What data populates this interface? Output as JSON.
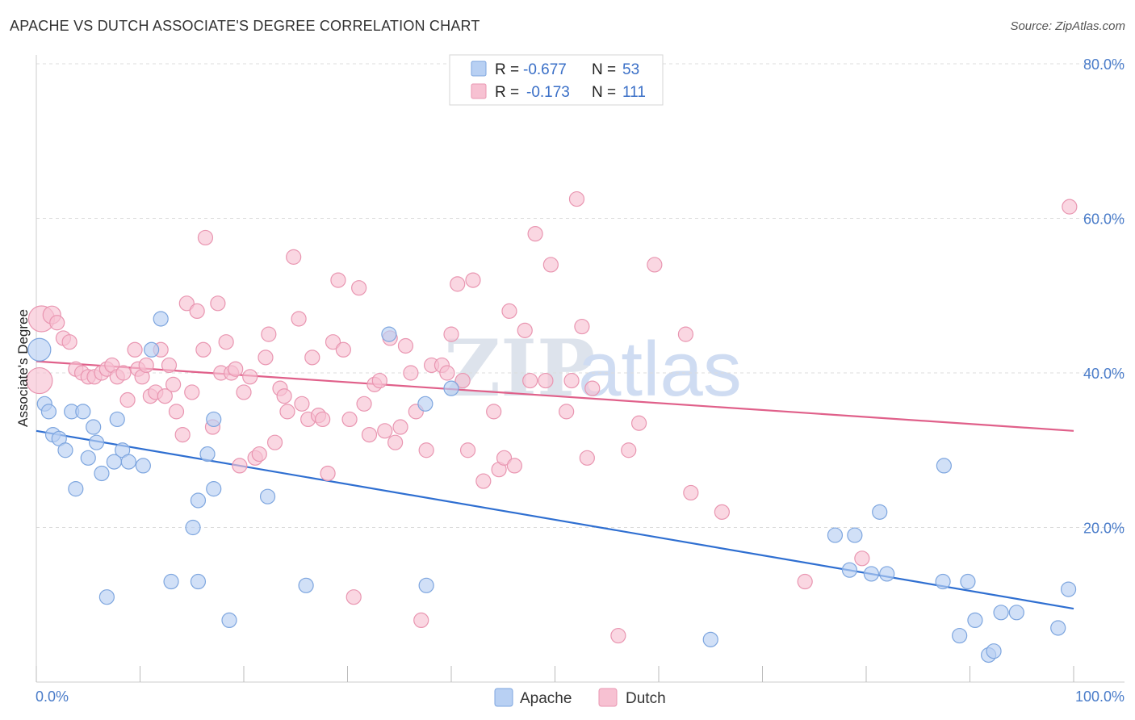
{
  "title": "APACHE VS DUTCH ASSOCIATE'S DEGREE CORRELATION CHART",
  "source": "Source: ZipAtlas.com",
  "watermark": {
    "zip": "ZIP",
    "atlas": "atlas"
  },
  "legend_top": [
    {
      "r_label": "R = ",
      "r_value": "-0.677",
      "n_label": "N = ",
      "n_value": "53"
    },
    {
      "r_label": "R = ",
      "r_value": "-0.173",
      "n_label": "N = ",
      "n_value": "111"
    }
  ],
  "colors": {
    "apache_fill": "#b8d0f3",
    "apache_stroke": "#7ea6df",
    "apache_line": "#2f6fd1",
    "dutch_fill": "#f7c1d2",
    "dutch_stroke": "#e996b1",
    "dutch_line": "#e0608a"
  },
  "chart_data": {
    "type": "scatter",
    "xlabel": "",
    "ylabel": "Associate's Degree",
    "xlim": [
      0,
      100
    ],
    "ylim": [
      0,
      80
    ],
    "x_tick_labels": [
      "0.0%",
      "100.0%"
    ],
    "y_ticks": [
      20,
      40,
      60,
      80
    ],
    "y_tick_labels": [
      "20.0%",
      "40.0%",
      "60.0%",
      "80.0%"
    ],
    "grid": true,
    "legend": "top-center",
    "series": [
      {
        "name": "Apache",
        "trend": {
          "x": [
            0,
            100
          ],
          "y": [
            32.5,
            9.5
          ]
        },
        "points": [
          [
            0.3,
            43,
            14
          ],
          [
            0.8,
            36,
            9
          ],
          [
            1.2,
            35,
            9
          ],
          [
            1.6,
            32,
            9
          ],
          [
            2.2,
            31.5,
            9
          ],
          [
            2.8,
            30,
            9
          ],
          [
            3.4,
            35,
            9
          ],
          [
            3.8,
            25,
            9
          ],
          [
            4.5,
            35,
            9
          ],
          [
            5.0,
            29,
            9
          ],
          [
            5.5,
            33,
            9
          ],
          [
            5.8,
            31,
            9
          ],
          [
            6.3,
            27,
            9
          ],
          [
            6.8,
            11,
            9
          ],
          [
            7.5,
            28.5,
            9
          ],
          [
            7.8,
            34,
            9
          ],
          [
            8.3,
            30,
            9
          ],
          [
            8.9,
            28.5,
            9
          ],
          [
            10.3,
            28,
            9
          ],
          [
            11.1,
            43,
            9
          ],
          [
            12.0,
            47,
            9
          ],
          [
            13.0,
            13,
            9
          ],
          [
            15.1,
            20,
            9
          ],
          [
            15.6,
            23.5,
            9
          ],
          [
            15.6,
            13,
            9
          ],
          [
            16.5,
            29.5,
            9
          ],
          [
            17.1,
            34,
            9
          ],
          [
            17.1,
            25,
            9
          ],
          [
            18.6,
            8,
            9
          ],
          [
            22.3,
            24,
            9
          ],
          [
            26.0,
            12.5,
            9
          ],
          [
            34.0,
            45,
            9
          ],
          [
            37.5,
            36,
            9
          ],
          [
            37.6,
            12.5,
            9
          ],
          [
            40.0,
            38,
            9
          ],
          [
            65.0,
            5.5,
            9
          ],
          [
            77.0,
            19,
            9
          ],
          [
            78.4,
            14.5,
            9
          ],
          [
            78.9,
            19,
            9
          ],
          [
            80.5,
            14,
            9
          ],
          [
            81.3,
            22,
            9
          ],
          [
            82.0,
            14,
            9
          ],
          [
            87.4,
            13,
            9
          ],
          [
            87.5,
            28,
            9
          ],
          [
            89.0,
            6,
            9
          ],
          [
            89.8,
            13,
            9
          ],
          [
            90.5,
            8,
            9
          ],
          [
            91.8,
            3.5,
            9
          ],
          [
            92.3,
            4,
            9
          ],
          [
            93.0,
            9,
            9
          ],
          [
            94.5,
            9,
            9
          ],
          [
            98.5,
            7,
            9
          ],
          [
            99.5,
            12,
            9
          ]
        ]
      },
      {
        "name": "Dutch",
        "trend": {
          "x": [
            0,
            100
          ],
          "y": [
            41.5,
            32.5
          ]
        },
        "points": [
          [
            0.3,
            39,
            16
          ],
          [
            0.5,
            47,
            16
          ],
          [
            1.5,
            47.5,
            11
          ],
          [
            2.0,
            46.5,
            9
          ],
          [
            2.6,
            44.5,
            9
          ],
          [
            3.2,
            44,
            9
          ],
          [
            3.8,
            40.5,
            9
          ],
          [
            4.4,
            40,
            9
          ],
          [
            5.0,
            39.5,
            9
          ],
          [
            5.6,
            39.5,
            9
          ],
          [
            6.3,
            40,
            9
          ],
          [
            6.8,
            40.5,
            9
          ],
          [
            7.3,
            41,
            9
          ],
          [
            7.8,
            39.5,
            9
          ],
          [
            8.4,
            40,
            9
          ],
          [
            8.8,
            36.5,
            9
          ],
          [
            9.5,
            43,
            9
          ],
          [
            9.8,
            40.5,
            9
          ],
          [
            10.2,
            39.5,
            9
          ],
          [
            10.6,
            41,
            9
          ],
          [
            11.0,
            37,
            9
          ],
          [
            11.5,
            37.5,
            9
          ],
          [
            12.0,
            43,
            9
          ],
          [
            12.4,
            37,
            9
          ],
          [
            12.8,
            41,
            9
          ],
          [
            13.2,
            38.5,
            9
          ],
          [
            13.5,
            35,
            9
          ],
          [
            14.1,
            32,
            9
          ],
          [
            14.5,
            49,
            9
          ],
          [
            15.0,
            37.5,
            9
          ],
          [
            15.5,
            48,
            9
          ],
          [
            16.1,
            43,
            9
          ],
          [
            16.3,
            57.5,
            9
          ],
          [
            17.0,
            33,
            9
          ],
          [
            17.5,
            49,
            9
          ],
          [
            17.8,
            40,
            9
          ],
          [
            18.3,
            44,
            9
          ],
          [
            18.8,
            40,
            9
          ],
          [
            19.2,
            40.5,
            9
          ],
          [
            19.6,
            28,
            9
          ],
          [
            20.0,
            37.5,
            9
          ],
          [
            20.6,
            39.5,
            9
          ],
          [
            21.1,
            29,
            9
          ],
          [
            21.5,
            29.5,
            9
          ],
          [
            22.1,
            42,
            9
          ],
          [
            22.4,
            45,
            9
          ],
          [
            23.0,
            31,
            9
          ],
          [
            23.5,
            38,
            9
          ],
          [
            23.9,
            37,
            9
          ],
          [
            24.2,
            35,
            9
          ],
          [
            24.8,
            55,
            9
          ],
          [
            25.3,
            47,
            9
          ],
          [
            25.6,
            36,
            9
          ],
          [
            26.2,
            34,
            9
          ],
          [
            26.6,
            42,
            9
          ],
          [
            27.2,
            34.5,
            9
          ],
          [
            27.6,
            34,
            9
          ],
          [
            28.1,
            27,
            9
          ],
          [
            28.6,
            44,
            9
          ],
          [
            29.1,
            52,
            9
          ],
          [
            29.6,
            43,
            9
          ],
          [
            30.2,
            34,
            9
          ],
          [
            30.6,
            11,
            9
          ],
          [
            31.1,
            51,
            9
          ],
          [
            31.6,
            36,
            9
          ],
          [
            32.1,
            32,
            9
          ],
          [
            32.6,
            38.5,
            9
          ],
          [
            33.1,
            39,
            9
          ],
          [
            33.6,
            32.5,
            9
          ],
          [
            34.1,
            44.5,
            9
          ],
          [
            34.6,
            31,
            9
          ],
          [
            35.1,
            33,
            9
          ],
          [
            35.6,
            43.5,
            9
          ],
          [
            36.1,
            40,
            9
          ],
          [
            36.6,
            35,
            9
          ],
          [
            37.1,
            8,
            9
          ],
          [
            37.6,
            30,
            9
          ],
          [
            38.1,
            41,
            9
          ],
          [
            39.1,
            41,
            9
          ],
          [
            39.6,
            40,
            9
          ],
          [
            40.0,
            45,
            9
          ],
          [
            40.6,
            51.5,
            9
          ],
          [
            41.1,
            39,
            9
          ],
          [
            41.6,
            30,
            9
          ],
          [
            42.1,
            52,
            9
          ],
          [
            43.1,
            26,
            9
          ],
          [
            44.1,
            35,
            9
          ],
          [
            44.6,
            27.5,
            9
          ],
          [
            45.1,
            29,
            9
          ],
          [
            45.6,
            48,
            9
          ],
          [
            46.1,
            28,
            9
          ],
          [
            47.1,
            45.5,
            9
          ],
          [
            47.6,
            39,
            9
          ],
          [
            48.1,
            58,
            9
          ],
          [
            49.1,
            39,
            9
          ],
          [
            49.6,
            54,
            9
          ],
          [
            51.1,
            35,
            9
          ],
          [
            51.6,
            39,
            9
          ],
          [
            52.1,
            62.5,
            9
          ],
          [
            52.6,
            46,
            9
          ],
          [
            53.1,
            29,
            9
          ],
          [
            53.6,
            38,
            9
          ],
          [
            56.1,
            6,
            9
          ],
          [
            57.1,
            30,
            9
          ],
          [
            58.1,
            33.5,
            9
          ],
          [
            59.6,
            54,
            9
          ],
          [
            62.6,
            45,
            9
          ],
          [
            63.1,
            24.5,
            9
          ],
          [
            66.1,
            22,
            9
          ],
          [
            74.1,
            13,
            9
          ],
          [
            79.6,
            16,
            9
          ],
          [
            99.6,
            61.5,
            9
          ]
        ]
      }
    ]
  }
}
